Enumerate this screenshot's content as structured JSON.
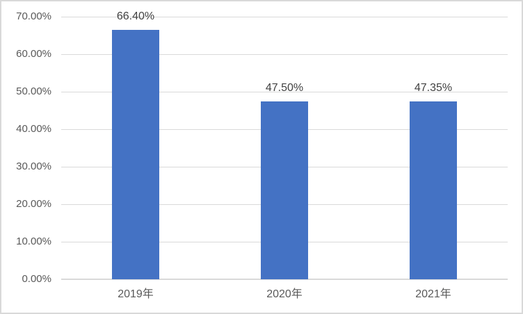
{
  "chart_data": {
    "type": "bar",
    "title": "",
    "xlabel": "",
    "ylabel": "",
    "categories": [
      "2019年",
      "2020年",
      "2021年"
    ],
    "values": [
      66.4,
      47.5,
      47.35
    ],
    "data_labels": [
      "66.40%",
      "47.50%",
      "47.35%"
    ],
    "y_ticks": [
      "0.00%",
      "10.00%",
      "20.00%",
      "30.00%",
      "40.00%",
      "50.00%",
      "60.00%",
      "70.00%"
    ],
    "y_tick_values": [
      0,
      10,
      20,
      30,
      40,
      50,
      60,
      70
    ],
    "ylim": [
      0,
      70
    ],
    "grid": true,
    "legend": false,
    "colors": {
      "bar_fill": "#4472C4",
      "gridline": "#D9D9D9",
      "axis_line": "#D9D9D9",
      "frame_border": "#D9D9D9",
      "tick_label": "#595959",
      "data_label": "#404040",
      "background": "#FFFFFF"
    }
  }
}
